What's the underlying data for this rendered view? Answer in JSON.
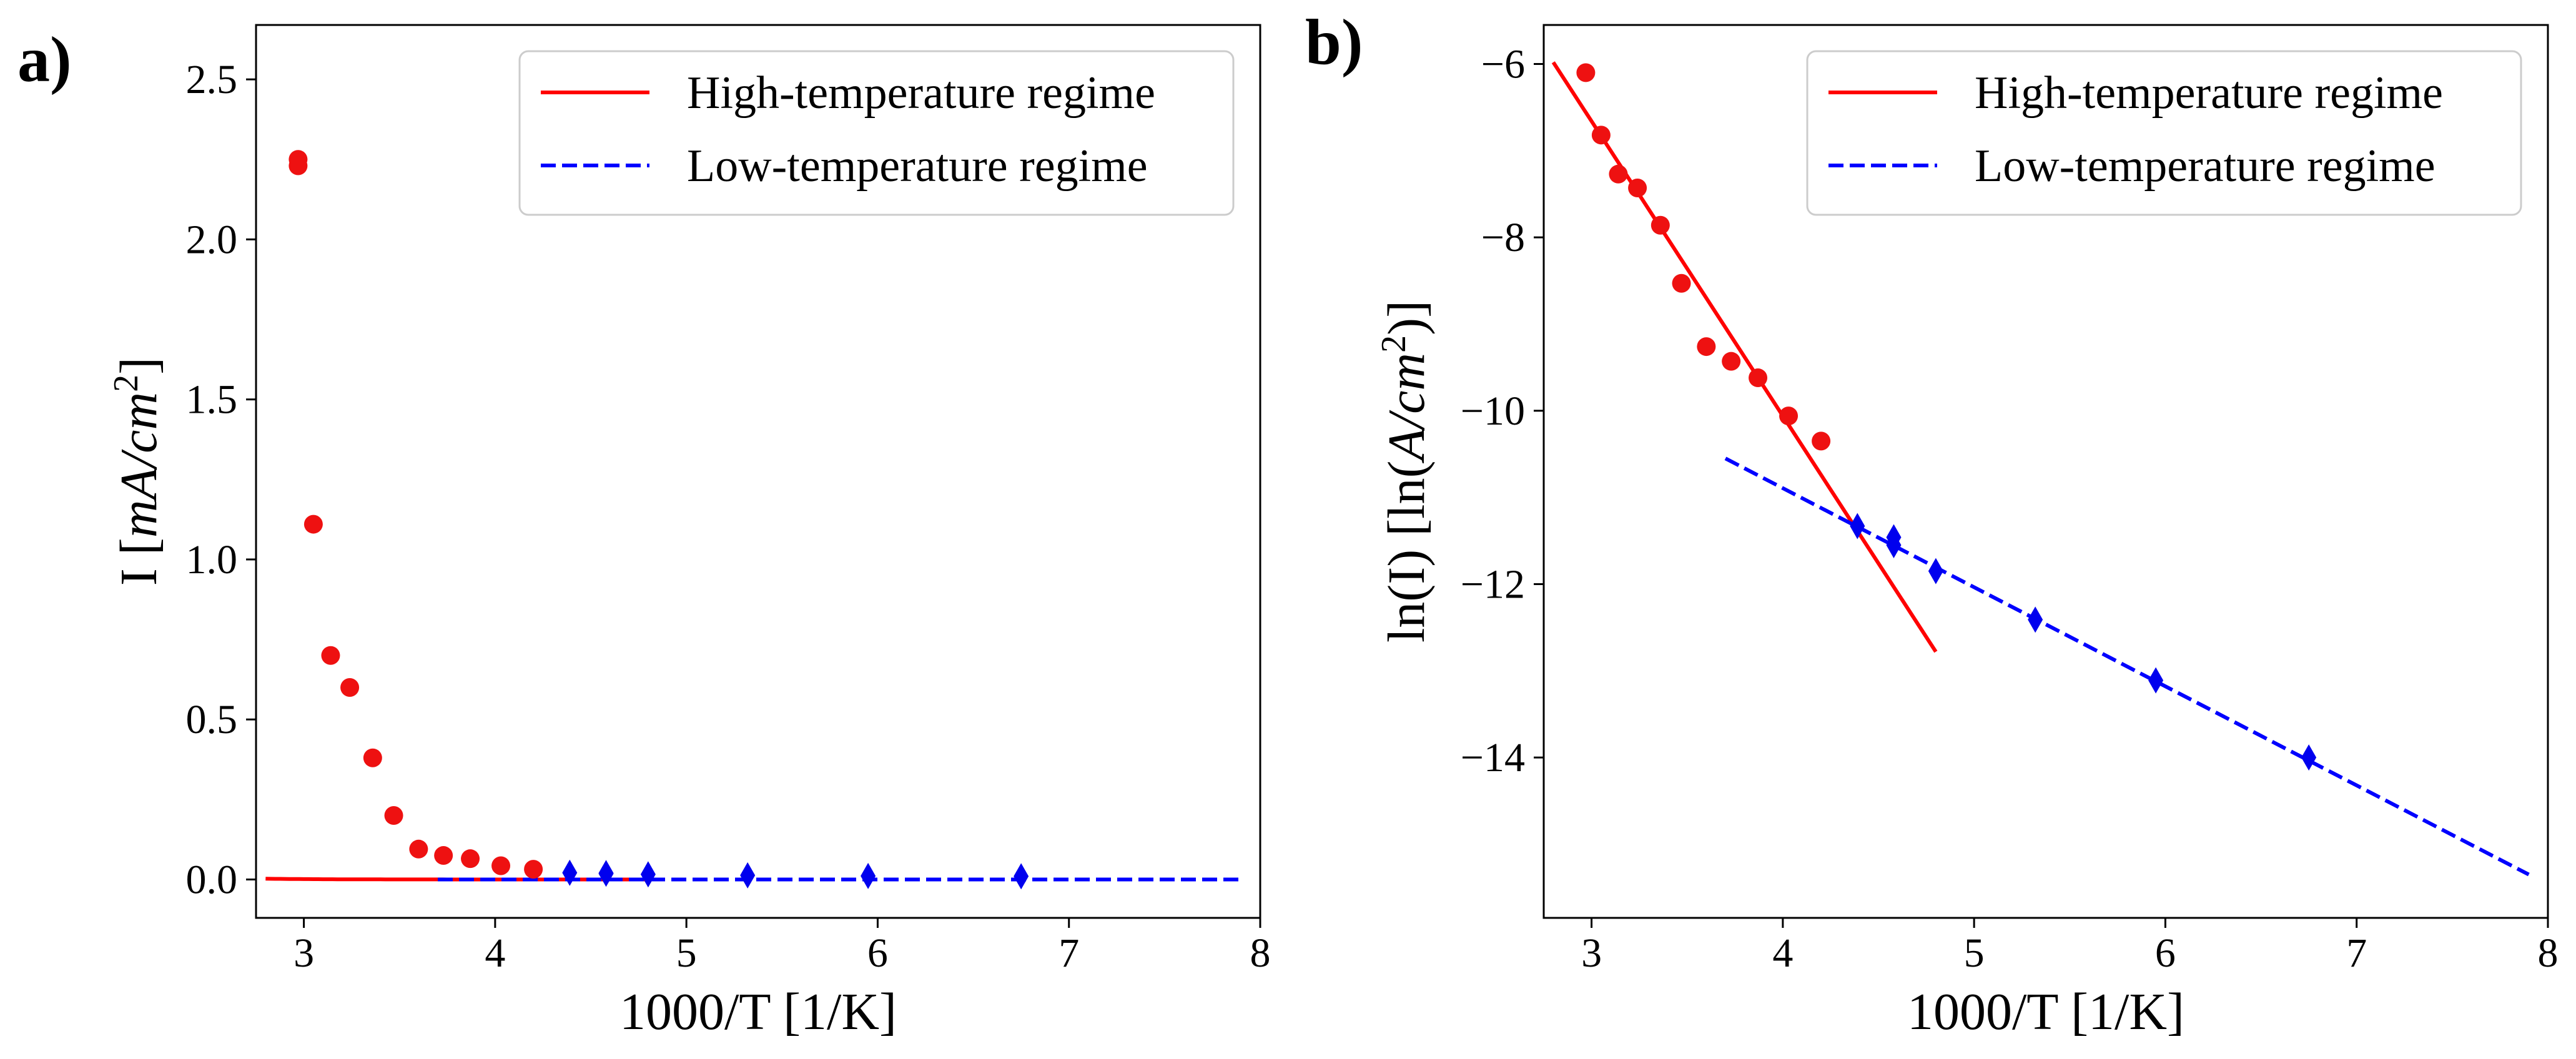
{
  "chart_data": [
    {
      "type": "scatter",
      "panel_label": "a)",
      "xlabel": "1000/T [1/K]",
      "ylabel": {
        "prefix": "I [",
        "math": "mA/cm",
        "sup": "2",
        "suffix": "]"
      },
      "xlim": [
        2.75,
        8.0
      ],
      "ylim": [
        -0.12,
        2.67
      ],
      "xticks": [
        3,
        4,
        5,
        6,
        7,
        8
      ],
      "yticks": [
        0.0,
        0.5,
        1.0,
        1.5,
        2.0,
        2.5
      ],
      "ytick_labels": [
        "0.0",
        "0.5",
        "1.0",
        "1.5",
        "2.0",
        "2.5"
      ],
      "legend": {
        "position": "top-right",
        "entries": [
          {
            "label": "High-temperature regime",
            "color": "#ff0000",
            "style": "solid"
          },
          {
            "label": "Low-temperature regime",
            "color": "#0000ff",
            "style": "dashed"
          }
        ]
      },
      "series": [
        {
          "name": "High-temperature data",
          "marker": "circle",
          "color": "#ee1111",
          "points": [
            [
              2.97,
              2.25
            ],
            [
              2.97,
              2.23
            ],
            [
              3.05,
              1.11
            ],
            [
              3.14,
              0.7
            ],
            [
              3.24,
              0.6
            ],
            [
              3.36,
              0.38
            ],
            [
              3.47,
              0.2
            ],
            [
              3.6,
              0.095
            ],
            [
              3.73,
              0.075
            ],
            [
              3.87,
              0.065
            ],
            [
              4.03,
              0.043
            ],
            [
              4.2,
              0.032
            ]
          ]
        },
        {
          "name": "Low-temperature data",
          "marker": "diamond",
          "color": "#0000ee",
          "points": [
            [
              4.39,
              0.021
            ],
            [
              4.58,
              0.02
            ],
            [
              4.58,
              0.018
            ],
            [
              4.8,
              0.016
            ],
            [
              5.32,
              0.013
            ],
            [
              5.95,
              0.011
            ],
            [
              6.75,
              0.01
            ]
          ]
        },
        {
          "name": "High-temperature regime",
          "line": "solid",
          "color": "#ff0000",
          "fit": "exp",
          "slope": -3.55,
          "intercept": 3.92,
          "x_range": [
            2.8,
            4.8
          ]
        },
        {
          "name": "Low-temperature regime",
          "line": "dashed",
          "color": "#0000ff",
          "fit": "exp",
          "slope": -1.105,
          "intercept": -6.46,
          "x_range": [
            3.7,
            7.9
          ]
        }
      ]
    },
    {
      "type": "scatter",
      "panel_label": "b)",
      "xlabel": "1000/T [1/K]",
      "ylabel": {
        "prefix": "ln(I) [ln(",
        "math": "A/cm",
        "sup": "2",
        "suffix": ")]"
      },
      "xlim": [
        2.75,
        8.0
      ],
      "ylim": [
        -15.85,
        -5.55
      ],
      "xticks": [
        3,
        4,
        5,
        6,
        7,
        8
      ],
      "yticks": [
        -14,
        -12,
        -10,
        -8,
        -6
      ],
      "ytick_labels": [
        "−14",
        "−12",
        "−10",
        "−8",
        "−6"
      ],
      "legend": {
        "position": "top-right",
        "entries": [
          {
            "label": "High-temperature regime",
            "color": "#ff0000",
            "style": "solid"
          },
          {
            "label": "Low-temperature regime",
            "color": "#0000ff",
            "style": "dashed"
          }
        ]
      },
      "series": [
        {
          "name": "High-temperature data",
          "marker": "circle",
          "color": "#ee1111",
          "points": [
            [
              2.97,
              -6.1
            ],
            [
              3.05,
              -6.82
            ],
            [
              3.14,
              -7.27
            ],
            [
              3.24,
              -7.43
            ],
            [
              3.36,
              -7.86
            ],
            [
              3.47,
              -8.53
            ],
            [
              3.6,
              -9.26
            ],
            [
              3.73,
              -9.43
            ],
            [
              3.87,
              -9.62
            ],
            [
              4.03,
              -10.06
            ],
            [
              4.2,
              -10.35
            ]
          ]
        },
        {
          "name": "Low-temperature data",
          "marker": "diamond",
          "color": "#0000ee",
          "points": [
            [
              4.39,
              -11.33
            ],
            [
              4.58,
              -11.46
            ],
            [
              4.58,
              -11.55
            ],
            [
              4.8,
              -11.85
            ],
            [
              5.32,
              -12.41
            ],
            [
              5.95,
              -13.11
            ],
            [
              6.75,
              -14.0
            ]
          ]
        },
        {
          "name": "High-temperature regime",
          "line": "solid",
          "color": "#ff0000",
          "points": [
            [
              2.8,
              -5.98
            ],
            [
              4.8,
              -12.78
            ]
          ]
        },
        {
          "name": "Low-temperature regime",
          "line": "dashed",
          "color": "#0000ff",
          "points": [
            [
              3.7,
              -10.55
            ],
            [
              7.9,
              -15.35
            ]
          ]
        }
      ]
    }
  ]
}
